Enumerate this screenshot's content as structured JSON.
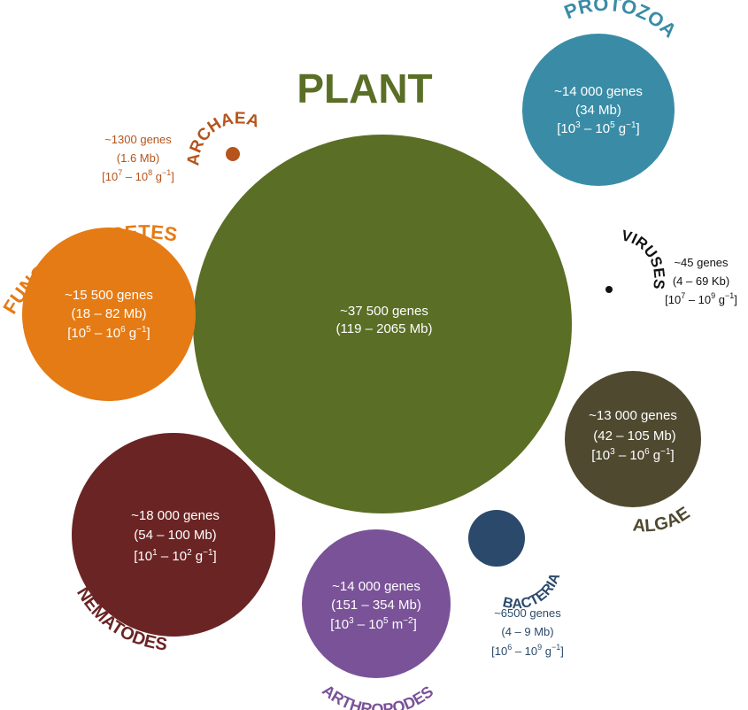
{
  "organisms": {
    "plant": {
      "name": "PLANT",
      "genes": "~37 500 genes",
      "genome": "(119 – 2065 Mb)",
      "color": "#5b6e26"
    },
    "protozoa": {
      "name": "PROTOZOA",
      "genes": "~14 000 genes",
      "genome": "(34 Mb)",
      "density_main": "[10",
      "density_e1": "3",
      "density_mid": " – 10",
      "density_e2": "5",
      "density_unit": " g",
      "density_e3": "−1",
      "density_end": "]",
      "color": "#3a8ca6"
    },
    "archaea": {
      "name": "ARCHAEA",
      "genes": "~1300 genes",
      "genome": "(1.6 Mb)",
      "density_main": "[10",
      "density_e1": "7",
      "density_mid": " – 10",
      "density_e2": "8",
      "density_unit": " g",
      "density_e3": "−1",
      "density_end": "]",
      "color": "#b5541c"
    },
    "fungi": {
      "name": "FUNGI/OOMYCETES",
      "genes": "~15 500 genes",
      "genome": "(18 – 82 Mb)",
      "density_main": "[10",
      "density_e1": "5",
      "density_mid": " – 10",
      "density_e2": "6",
      "density_unit": " g",
      "density_e3": "−1",
      "density_end": "]",
      "color": "#e57b14"
    },
    "viruses": {
      "name": "VIRUSES",
      "genes": "~45 genes",
      "genome": "(4 – 69 Kb)",
      "density_main": "[10",
      "density_e1": "7",
      "density_mid": " – 10",
      "density_e2": "9",
      "density_unit": " g",
      "density_e3": "−1",
      "density_end": "]",
      "color": "#111111"
    },
    "algae": {
      "name": "ALGAE",
      "genes": "~13 000 genes",
      "genome": "(42 – 105 Mb)",
      "density_main": "[10",
      "density_e1": "3",
      "density_mid": " – 10",
      "density_e2": "6",
      "density_unit": " g",
      "density_e3": "−1",
      "density_end": "]",
      "color": "#4f4930"
    },
    "nematodes": {
      "name": "NEMATODES",
      "genes": "~18 000 genes",
      "genome": "(54 – 100 Mb)",
      "density_main": "[10",
      "density_e1": "1",
      "density_mid": " – 10",
      "density_e2": "2",
      "density_unit": " g",
      "density_e3": "−1",
      "density_end": "]",
      "color": "#6b2424"
    },
    "arthropodes": {
      "name": "ARTHROPODES",
      "genes": "~14 000 genes",
      "genome": "(151 – 354 Mb)",
      "density_main": "[10",
      "density_e1": "3",
      "density_mid": " – 10",
      "density_e2": "5",
      "density_unit": " m",
      "density_e3": "−2",
      "density_end": "]",
      "color": "#7a5298"
    },
    "bacteria": {
      "name": "BACTERIA",
      "genes": "~6500 genes",
      "genome": "(4 – 9 Mb)",
      "density_main": "[10",
      "density_e1": "6",
      "density_mid": " – 10",
      "density_e2": "9",
      "density_unit": " g",
      "density_e3": "−1",
      "density_end": "]",
      "color": "#2b4a6b"
    }
  }
}
